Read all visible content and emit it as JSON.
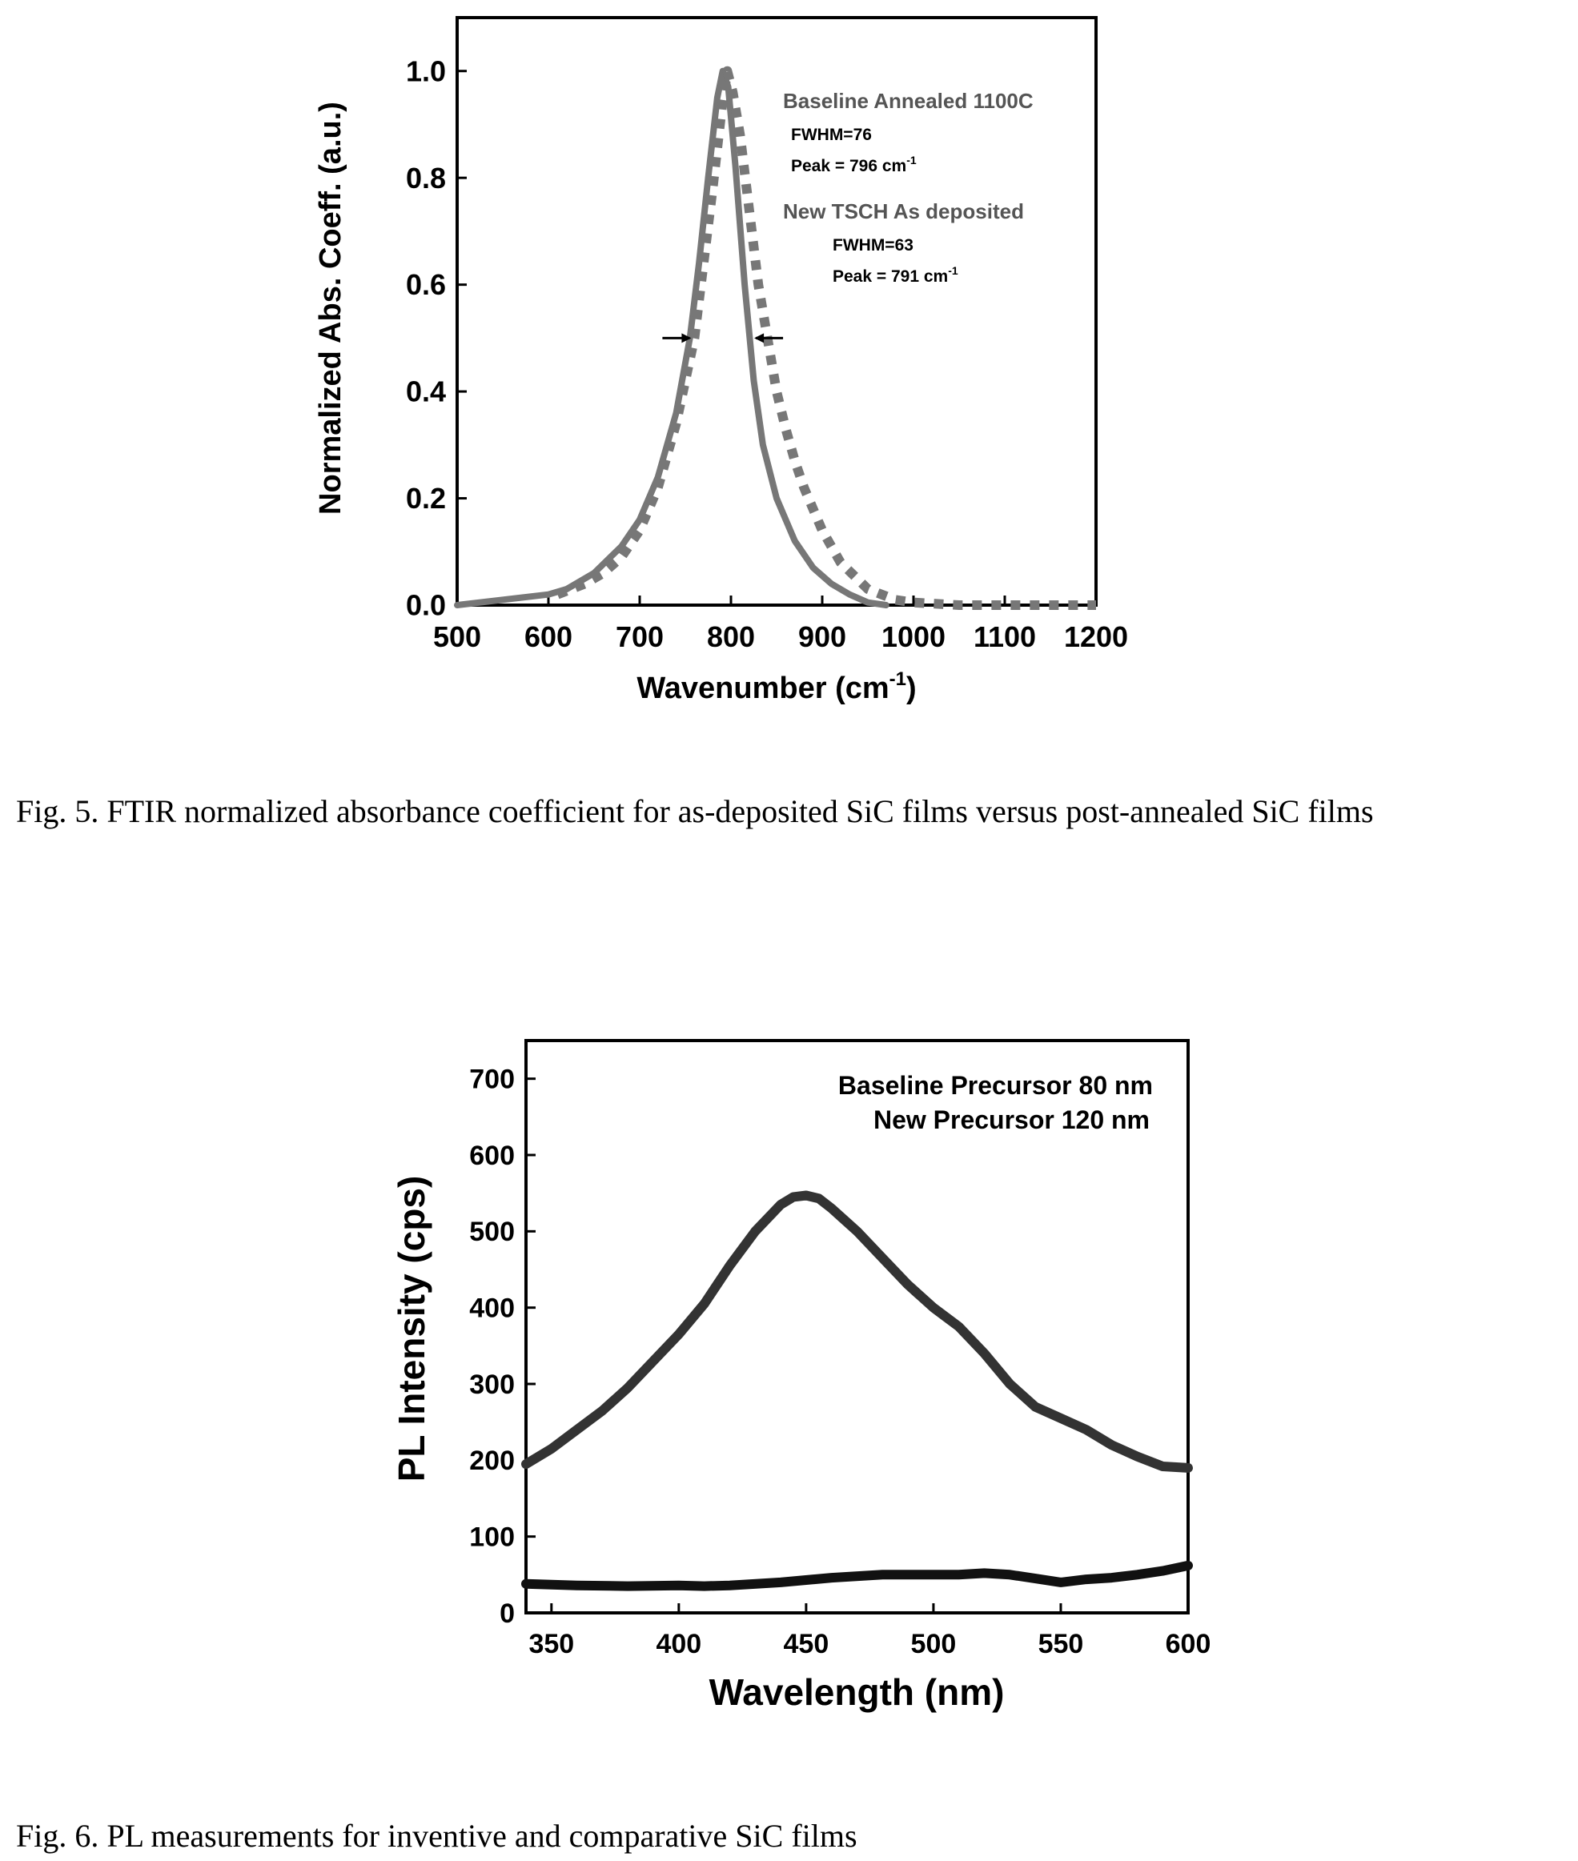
{
  "chart_data": [
    {
      "type": "line",
      "caption": "Fig. 5.  FTIR normalized absorbance coefficient for as-deposited SiC films versus post-annealed SiC films",
      "xlabel": "Wavenumber (cm",
      "xlabel_sup": "-1",
      "xlabel_end": ")",
      "ylabel": "Normalized Abs. Coeff. (a.u.)",
      "xlim": [
        500,
        1200
      ],
      "ylim": [
        0,
        1.1
      ],
      "xticks": [
        500,
        600,
        700,
        800,
        900,
        1000,
        1100,
        1200
      ],
      "yticks": [
        0.0,
        0.2,
        0.4,
        0.6,
        0.8,
        1.0
      ],
      "ytick_labels": [
        "0.0",
        "0.2",
        "0.4",
        "0.6",
        "0.8",
        "1.0"
      ],
      "grid": false,
      "annotations": {
        "a1_title": "Baseline Annealed 1100C",
        "a1_fwhm": "FWHM=76",
        "a1_peak": "Peak = 796 cm",
        "a1_peak_sup": "-1",
        "a2_title": "New TSCH As deposited",
        "a2_fwhm": "FWHM=63",
        "a2_peak": "Peak = 791 cm",
        "a2_peak_sup": "-1"
      },
      "fwhm_markers_x": [
        760,
        822
      ],
      "fwhm_marker_y": 0.5,
      "series": [
        {
          "style": "solid",
          "color": "#777777",
          "x": [
            500,
            550,
            600,
            620,
            650,
            680,
            700,
            720,
            740,
            755,
            765,
            775,
            785,
            791,
            797,
            805,
            815,
            825,
            835,
            850,
            870,
            890,
            910,
            930,
            950,
            970
          ],
          "y": [
            0.0,
            0.01,
            0.02,
            0.03,
            0.06,
            0.11,
            0.16,
            0.24,
            0.36,
            0.5,
            0.64,
            0.8,
            0.95,
            1.0,
            0.97,
            0.82,
            0.6,
            0.42,
            0.3,
            0.2,
            0.12,
            0.07,
            0.04,
            0.02,
            0.005,
            0.0
          ]
        },
        {
          "style": "dotted",
          "color": "#777777",
          "x": [
            610,
            640,
            660,
            680,
            700,
            720,
            740,
            760,
            780,
            790,
            796,
            802,
            810,
            820,
            830,
            840,
            850,
            860,
            870,
            880,
            900,
            920,
            950,
            980,
            1000,
            1050,
            1100,
            1150,
            1200
          ],
          "y": [
            0.02,
            0.04,
            0.06,
            0.09,
            0.14,
            0.22,
            0.34,
            0.5,
            0.78,
            0.93,
            1.0,
            0.96,
            0.88,
            0.74,
            0.6,
            0.5,
            0.4,
            0.33,
            0.27,
            0.22,
            0.14,
            0.08,
            0.03,
            0.01,
            0.005,
            0.0,
            0.0,
            0.0,
            0.0
          ]
        }
      ]
    },
    {
      "type": "line",
      "caption": "Fig. 6.  PL measurements for inventive and comparative SiC films",
      "xlabel": "Wavelength (nm)",
      "ylabel": "PL Intensity (cps)",
      "xlim": [
        340,
        600
      ],
      "ylim": [
        0,
        750
      ],
      "xticks": [
        350,
        400,
        450,
        500,
        550,
        600
      ],
      "yticks": [
        0,
        100,
        200,
        300,
        400,
        500,
        600,
        700
      ],
      "grid": false,
      "legend_lines": [
        "Baseline Precursor 80 nm",
        "New Precursor 120 nm"
      ],
      "series": [
        {
          "style": "solid",
          "color": "#333333",
          "x": [
            340,
            350,
            360,
            370,
            380,
            390,
            400,
            410,
            420,
            430,
            440,
            445,
            450,
            455,
            460,
            470,
            480,
            490,
            500,
            510,
            520,
            530,
            540,
            550,
            560,
            570,
            580,
            590,
            600
          ],
          "y": [
            195,
            215,
            240,
            265,
            295,
            330,
            365,
            405,
            455,
            500,
            535,
            545,
            547,
            543,
            530,
            500,
            465,
            430,
            400,
            375,
            340,
            300,
            270,
            255,
            240,
            220,
            205,
            192,
            190
          ]
        },
        {
          "style": "solid",
          "color": "#111111",
          "x": [
            340,
            360,
            380,
            400,
            410,
            420,
            440,
            460,
            480,
            500,
            510,
            520,
            530,
            540,
            550,
            560,
            570,
            580,
            590,
            600
          ],
          "y": [
            38,
            36,
            35,
            36,
            35,
            36,
            40,
            46,
            50,
            50,
            50,
            52,
            50,
            45,
            40,
            44,
            46,
            50,
            55,
            62
          ]
        }
      ]
    }
  ]
}
